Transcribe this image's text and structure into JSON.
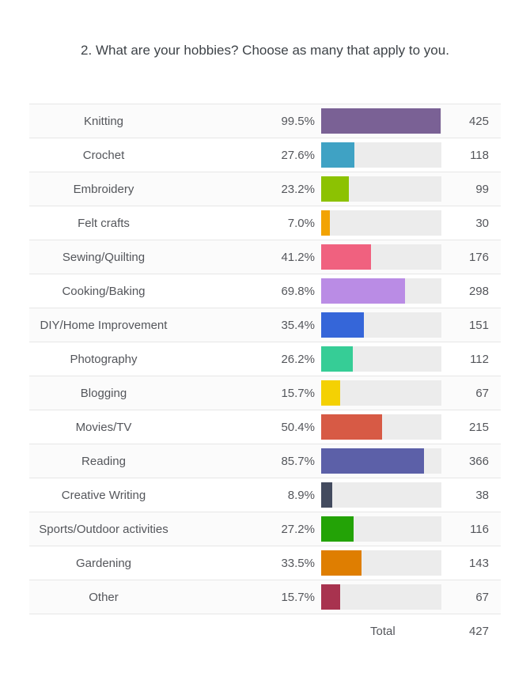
{
  "title": "2. What are your hobbies? Choose as many that apply to you.",
  "chart_data": {
    "type": "bar",
    "orientation": "horizontal",
    "title": "2. What are your hobbies? Choose as many that apply to you.",
    "xlim_percent": [
      0,
      100
    ],
    "grid": false,
    "legend": "none",
    "rows": [
      {
        "label": "Knitting",
        "percent_label": "99.5%",
        "percent": 99.5,
        "count": "425",
        "color": "#7a6195"
      },
      {
        "label": "Crochet",
        "percent_label": "27.6%",
        "percent": 27.6,
        "count": "118",
        "color": "#3fa2c4"
      },
      {
        "label": "Embroidery",
        "percent_label": "23.2%",
        "percent": 23.2,
        "count": "99",
        "color": "#8cc202"
      },
      {
        "label": "Felt crafts",
        "percent_label": "7.0%",
        "percent": 7.0,
        "count": "30",
        "color": "#f2a303"
      },
      {
        "label": "Sewing/Quilting",
        "percent_label": "41.2%",
        "percent": 41.2,
        "count": "176",
        "color": "#f0617f"
      },
      {
        "label": "Cooking/Baking",
        "percent_label": "69.8%",
        "percent": 69.8,
        "count": "298",
        "color": "#ba8ce5"
      },
      {
        "label": "DIY/Home Improvement",
        "percent_label": "35.4%",
        "percent": 35.4,
        "count": "151",
        "color": "#3566d9"
      },
      {
        "label": "Photography",
        "percent_label": "26.2%",
        "percent": 26.2,
        "count": "112",
        "color": "#36cd96"
      },
      {
        "label": "Blogging",
        "percent_label": "15.7%",
        "percent": 15.7,
        "count": "67",
        "color": "#f4d103"
      },
      {
        "label": "Movies/TV",
        "percent_label": "50.4%",
        "percent": 50.4,
        "count": "215",
        "color": "#d75a45"
      },
      {
        "label": "Reading",
        "percent_label": "85.7%",
        "percent": 85.7,
        "count": "366",
        "color": "#5c60a8"
      },
      {
        "label": "Creative Writing",
        "percent_label": "8.9%",
        "percent": 8.9,
        "count": "38",
        "color": "#434b5f"
      },
      {
        "label": "Sports/Outdoor activities",
        "percent_label": "27.2%",
        "percent": 27.2,
        "count": "116",
        "color": "#23a306"
      },
      {
        "label": "Gardening",
        "percent_label": "33.5%",
        "percent": 33.5,
        "count": "143",
        "color": "#df7e01"
      },
      {
        "label": "Other",
        "percent_label": "15.7%",
        "percent": 15.7,
        "count": "67",
        "color": "#a8334f"
      }
    ],
    "total": {
      "label": "Total",
      "count": "427"
    }
  },
  "colors": {
    "bar_track": "#ececec",
    "row_stripe": "#fbfbfb",
    "row_border": "#e7e7e7",
    "text": "#54565b",
    "title_text": "#3e4348"
  }
}
